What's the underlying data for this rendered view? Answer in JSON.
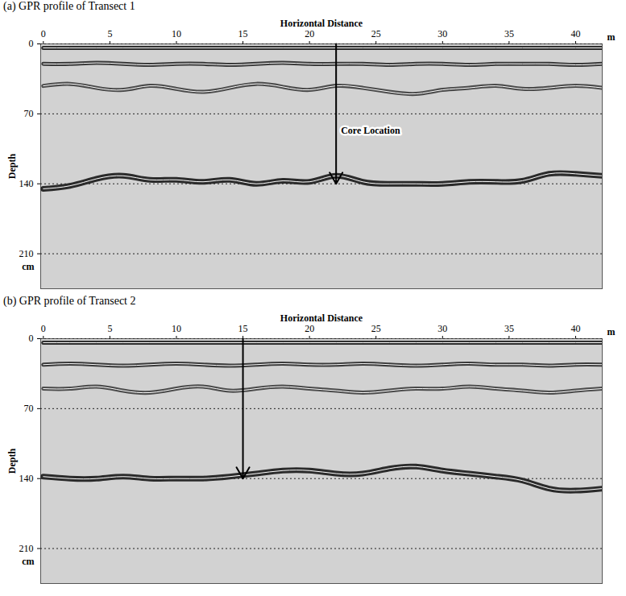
{
  "chart_data": [
    {
      "type": "line",
      "title": "(a) GPR profile of Transect 1",
      "x_label": "Horizontal Distance",
      "y_label": "Depth",
      "x_unit": "m",
      "y_unit": "cm",
      "xlim": [
        -0.2,
        42
      ],
      "xticks": [
        0,
        5,
        10,
        15,
        20,
        25,
        30,
        35,
        40
      ],
      "ylim": [
        0,
        245
      ],
      "yticks": [
        0,
        70,
        140,
        210
      ],
      "grid": true,
      "x": [
        0,
        2,
        4,
        6,
        8,
        10,
        12,
        14,
        16,
        18,
        20,
        22,
        24,
        26,
        28,
        30,
        32,
        34,
        36,
        38,
        40,
        42
      ],
      "series": [
        {
          "color": "#2b2b2b",
          "values": [
            4,
            4,
            4,
            4,
            4,
            4,
            4,
            4,
            4,
            4,
            4,
            4,
            4,
            4,
            4,
            4,
            4,
            4,
            4,
            4,
            4,
            4
          ]
        },
        {
          "color": "#3a3a3a",
          "values": [
            20,
            20,
            19,
            20,
            21,
            20,
            20,
            21,
            20,
            19,
            20,
            20,
            20,
            21,
            20,
            20,
            21,
            20,
            20,
            20,
            21,
            20
          ]
        },
        {
          "color": "#4a4a4a",
          "values": [
            42,
            40,
            44,
            46,
            42,
            45,
            48,
            44,
            40,
            43,
            46,
            42,
            44,
            48,
            50,
            46,
            44,
            42,
            45,
            44,
            42,
            44
          ]
        },
        {
          "color": "#2b2b2b",
          "values": [
            145,
            142,
            135,
            132,
            136,
            136,
            138,
            136,
            140,
            137,
            138,
            132,
            138,
            140,
            140,
            140,
            138,
            138,
            137,
            130,
            130,
            132
          ]
        }
      ],
      "annotations": [
        {
          "text": "Core Location",
          "x": 22,
          "y_start": 0,
          "y_end": 140
        }
      ]
    },
    {
      "type": "line",
      "title": "(b) GPR profile of Transect 2",
      "x_label": "Horizontal Distance",
      "y_label": "Depth",
      "x_unit": "m",
      "y_unit": "cm",
      "xlim": [
        -0.2,
        42
      ],
      "xticks": [
        0,
        5,
        10,
        15,
        20,
        25,
        30,
        35,
        40
      ],
      "ylim": [
        0,
        245
      ],
      "yticks": [
        0,
        70,
        140,
        210
      ],
      "grid": true,
      "x": [
        0,
        2,
        4,
        6,
        8,
        10,
        12,
        14,
        16,
        18,
        20,
        22,
        24,
        26,
        28,
        30,
        32,
        34,
        36,
        38,
        40,
        42
      ],
      "series": [
        {
          "color": "#2b2b2b",
          "values": [
            4,
            4,
            4,
            4,
            4,
            4,
            4,
            4,
            4,
            4,
            4,
            4,
            4,
            4,
            4,
            4,
            4,
            4,
            4,
            4,
            4,
            4
          ]
        },
        {
          "color": "#3a3a3a",
          "values": [
            26,
            25,
            26,
            27,
            26,
            25,
            26,
            27,
            26,
            25,
            26,
            26,
            25,
            26,
            27,
            26,
            25,
            26,
            26,
            27,
            26,
            26
          ]
        },
        {
          "color": "#4a4a4a",
          "values": [
            50,
            50,
            48,
            52,
            54,
            50,
            48,
            52,
            50,
            48,
            50,
            52,
            54,
            52,
            50,
            50,
            48,
            50,
            52,
            54,
            52,
            50
          ]
        },
        {
          "color": "#2b2b2b",
          "values": [
            138,
            140,
            140,
            138,
            140,
            140,
            140,
            138,
            135,
            132,
            132,
            135,
            135,
            130,
            128,
            132,
            135,
            138,
            142,
            150,
            152,
            150
          ]
        }
      ],
      "annotations": [
        {
          "x": 15,
          "y_start": 0,
          "y_end": 140
        }
      ]
    }
  ]
}
